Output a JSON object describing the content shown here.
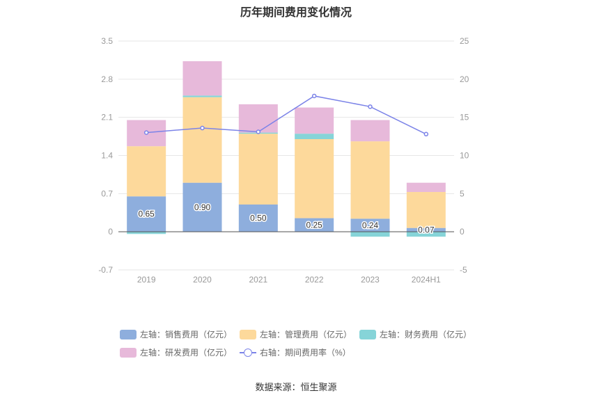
{
  "title": "历年期间费用变化情况",
  "source": "数据来源：恒生聚源",
  "colors": {
    "sales": "#8eaedd",
    "mgmt": "#fdd99b",
    "finance": "#86d4d8",
    "rnd": "#e7b9da",
    "rate": "#7b83e8",
    "axis_text": "#999999",
    "grid": "#e6e6e6"
  },
  "legend": [
    {
      "key": "sales",
      "label": "左轴：销售费用（亿元）"
    },
    {
      "key": "mgmt",
      "label": "左轴：管理费用（亿元）"
    },
    {
      "key": "finance",
      "label": "左轴：财务费用（亿元）"
    },
    {
      "key": "rnd",
      "label": "左轴：研发费用（亿元）"
    },
    {
      "key": "rate",
      "label": "右轴：期间费用率（%）"
    }
  ],
  "chart_data": {
    "type": "bar",
    "stacked": true,
    "categories": [
      "2019",
      "2020",
      "2021",
      "2022",
      "2023",
      "2024H1"
    ],
    "series": [
      {
        "name": "左轴：销售费用（亿元）",
        "key": "sales",
        "axis": "left",
        "values": [
          0.65,
          0.9,
          0.5,
          0.25,
          0.24,
          0.07
        ],
        "labels": [
          "0.65",
          "0.90",
          "0.50",
          "0.25",
          "0.24",
          "0.07"
        ]
      },
      {
        "name": "左轴：管理费用（亿元）",
        "key": "mgmt",
        "axis": "left",
        "values": [
          0.92,
          1.57,
          1.3,
          1.45,
          1.42,
          0.66
        ]
      },
      {
        "name": "左轴：财务费用（亿元）",
        "key": "finance",
        "axis": "left",
        "values": [
          -0.04,
          0.03,
          0.02,
          0.1,
          -0.09,
          -0.09
        ]
      },
      {
        "name": "左轴：研发费用（亿元）",
        "key": "rnd",
        "axis": "left",
        "values": [
          0.48,
          0.63,
          0.52,
          0.48,
          0.39,
          0.17
        ]
      },
      {
        "name": "右轴：期间费用率（%）",
        "key": "rate",
        "axis": "right",
        "type": "line",
        "values": [
          13.0,
          13.6,
          13.1,
          17.8,
          16.4,
          12.8
        ]
      }
    ],
    "left_axis": {
      "min": -0.7,
      "max": 3.5,
      "ticks": [
        "-0.7",
        "0",
        "0.7",
        "1.4",
        "2.1",
        "2.8",
        "3.5"
      ],
      "tick_values": [
        -0.7,
        0,
        0.7,
        1.4,
        2.1,
        2.8,
        3.5
      ]
    },
    "right_axis": {
      "min": -5,
      "max": 25,
      "ticks": [
        "-5",
        "0",
        "5",
        "10",
        "15",
        "20",
        "25"
      ],
      "tick_values": [
        -5,
        0,
        5,
        10,
        15,
        20,
        25
      ]
    },
    "grid": true,
    "legend_position": "bottom"
  }
}
